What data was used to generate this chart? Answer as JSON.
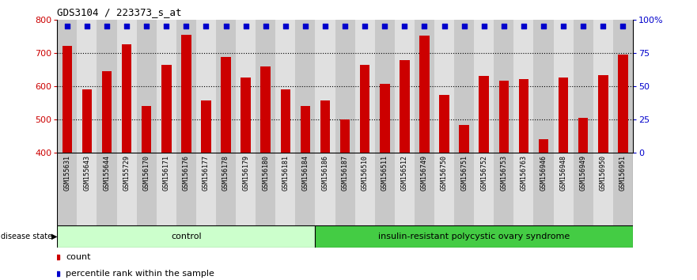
{
  "title": "GDS3104 / 223373_s_at",
  "samples": [
    "GSM155631",
    "GSM155643",
    "GSM155644",
    "GSM155729",
    "GSM156170",
    "GSM156171",
    "GSM156176",
    "GSM156177",
    "GSM156178",
    "GSM156179",
    "GSM156180",
    "GSM156181",
    "GSM156184",
    "GSM156186",
    "GSM156187",
    "GSM156510",
    "GSM156511",
    "GSM156512",
    "GSM156749",
    "GSM156750",
    "GSM156751",
    "GSM156752",
    "GSM156753",
    "GSM156763",
    "GSM156946",
    "GSM156948",
    "GSM156949",
    "GSM156950",
    "GSM156951"
  ],
  "counts": [
    722,
    590,
    645,
    725,
    540,
    665,
    755,
    557,
    688,
    627,
    660,
    590,
    540,
    557,
    500,
    665,
    607,
    678,
    753,
    573,
    483,
    630,
    617,
    620,
    440,
    627,
    505,
    632,
    695
  ],
  "n_control": 13,
  "control_label": "control",
  "disease_label": "insulin-resistant polycystic ovary syndrome",
  "bar_color": "#cc0000",
  "dot_color": "#0000cc",
  "ylim_left": [
    400,
    800
  ],
  "yticks_left": [
    400,
    500,
    600,
    700,
    800
  ],
  "ylim_right": [
    0,
    100
  ],
  "yticks_right": [
    0,
    25,
    50,
    75,
    100
  ],
  "ytick_right_labels": [
    "0",
    "25",
    "50",
    "75",
    "100%"
  ],
  "hgrid_vals": [
    500,
    600,
    700
  ],
  "col_bg_odd": "#c8c8c8",
  "col_bg_even": "#e0e0e0",
  "control_bg": "#ccffcc",
  "disease_bg": "#44cc44",
  "title_fontsize": 9,
  "bar_tick_fontsize": 6,
  "ytick_fontsize": 8,
  "group_fontsize": 8,
  "legend_fontsize": 8
}
